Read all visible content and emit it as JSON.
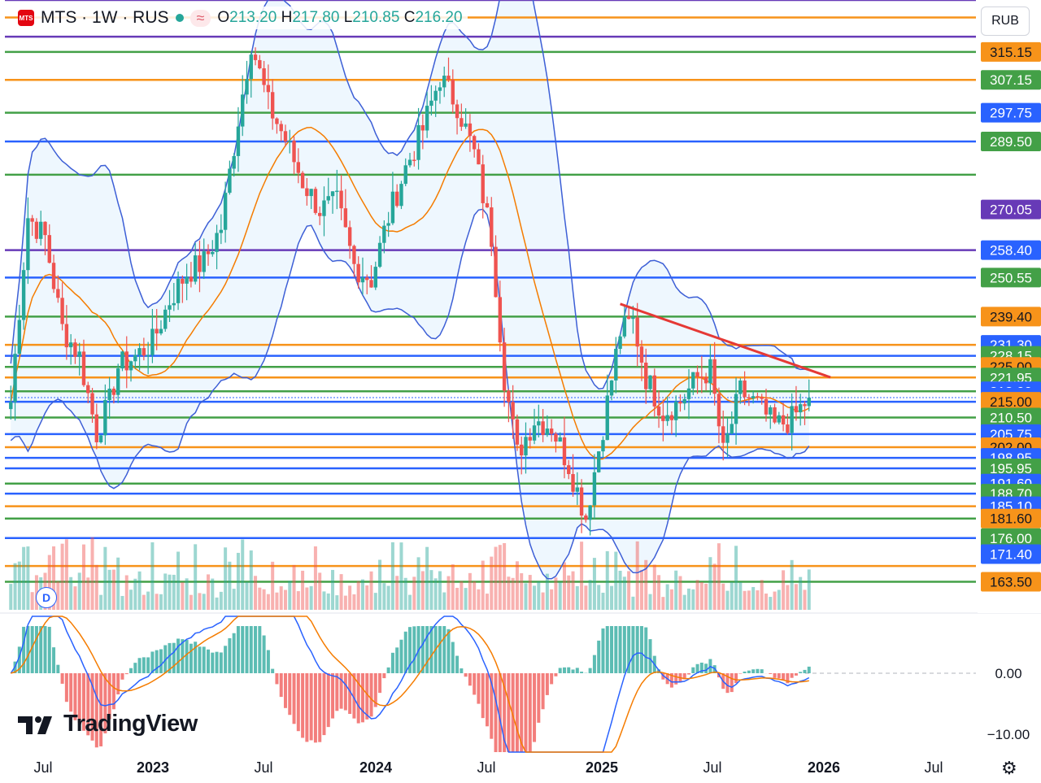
{
  "header": {
    "symbol": "MTS · 1W · RUS",
    "logo_text": "MTS",
    "approx_symbol": "≈",
    "open_label": "O",
    "open": "213.20",
    "high_label": "H",
    "high": "217.80",
    "low_label": "L",
    "low": "210.85",
    "close_label": "C",
    "close": "216.20"
  },
  "currency": "RUB",
  "branding": "TradingView",
  "dividend_badge": "D",
  "colors": {
    "green": "#43a047",
    "orange": "#f7931a",
    "blue": "#2962ff",
    "purple": "#673ab7",
    "bull": "#26a69a",
    "bear": "#ef5350",
    "bb": "#3d5fd6",
    "ma": "#f57c00",
    "trend": "#e53935"
  },
  "chart_data": {
    "type": "candlestick",
    "title": "MTS · 1W · RUS",
    "ylim": [
      155,
      330
    ],
    "last_price": 216.2,
    "price_axis_labels": [
      {
        "value": 315.15,
        "color": "#f7931a"
      },
      {
        "value": 307.15,
        "color": "#43a047"
      },
      {
        "value": 297.75,
        "color": "#2962ff"
      },
      {
        "value": 289.5,
        "color": "#43a047"
      },
      {
        "value": 270.05,
        "color": "#673ab7"
      },
      {
        "value": 258.4,
        "color": "#2962ff"
      },
      {
        "value": 250.55,
        "color": "#43a047"
      },
      {
        "value": 239.4,
        "color": "#f7931a"
      },
      {
        "value": 231.3,
        "color": "#2962ff"
      },
      {
        "value": 228.15,
        "color": "#43a047"
      },
      {
        "value": 225.0,
        "color": "#f7931a"
      },
      {
        "value": 221.95,
        "color": "#43a047"
      },
      {
        "value": 218.0,
        "color": "#2962ff"
      },
      {
        "value": 216.2,
        "color": "#2962ff"
      },
      {
        "value": 215.0,
        "color": "#f7931a"
      },
      {
        "value": 210.5,
        "color": "#43a047"
      },
      {
        "value": 205.75,
        "color": "#2962ff"
      },
      {
        "value": 202.0,
        "color": "#f7931a"
      },
      {
        "value": 198.95,
        "color": "#2962ff"
      },
      {
        "value": 195.95,
        "color": "#43a047"
      },
      {
        "value": 191.6,
        "color": "#2962ff"
      },
      {
        "value": 188.7,
        "color": "#43a047"
      },
      {
        "value": 185.1,
        "color": "#2962ff"
      },
      {
        "value": 181.6,
        "color": "#f7931a"
      },
      {
        "value": 176.0,
        "color": "#43a047"
      },
      {
        "value": 171.4,
        "color": "#2962ff"
      },
      {
        "value": 163.5,
        "color": "#f7931a"
      }
    ],
    "horizontal_levels": [
      {
        "value": 330,
        "color": "#673ab7"
      },
      {
        "value": 325,
        "color": "#f7931a"
      },
      {
        "value": 319.5,
        "color": "#673ab7"
      },
      {
        "value": 315.15,
        "color": "#43a047"
      },
      {
        "value": 307.15,
        "color": "#f7931a"
      },
      {
        "value": 297.75,
        "color": "#43a047"
      },
      {
        "value": 289.5,
        "color": "#2962ff"
      },
      {
        "value": 280,
        "color": "#43a047"
      },
      {
        "value": 258.4,
        "color": "#673ab7"
      },
      {
        "value": 250.55,
        "color": "#2962ff"
      },
      {
        "value": 239.4,
        "color": "#43a047"
      },
      {
        "value": 231.3,
        "color": "#f7931a"
      },
      {
        "value": 228.15,
        "color": "#2962ff"
      },
      {
        "value": 225,
        "color": "#43a047"
      },
      {
        "value": 221.95,
        "color": "#f7931a"
      },
      {
        "value": 218,
        "color": "#43a047"
      },
      {
        "value": 215,
        "color": "#2962ff"
      },
      {
        "value": 210.5,
        "color": "#43a047"
      },
      {
        "value": 205.75,
        "color": "#2962ff"
      },
      {
        "value": 202,
        "color": "#f7931a"
      },
      {
        "value": 198.95,
        "color": "#2962ff"
      },
      {
        "value": 195.95,
        "color": "#2962ff"
      },
      {
        "value": 191.6,
        "color": "#43a047"
      },
      {
        "value": 188.7,
        "color": "#2962ff"
      },
      {
        "value": 185.1,
        "color": "#f7931a"
      },
      {
        "value": 181.6,
        "color": "#43a047"
      },
      {
        "value": 176,
        "color": "#2962ff"
      },
      {
        "value": 168,
        "color": "#f7931a"
      },
      {
        "value": 163.5,
        "color": "#43a047"
      }
    ],
    "trendline": {
      "from": {
        "date": "2025-01-20",
        "value": 243
      },
      "to": {
        "date": "2025-12-29",
        "value": 222
      }
    },
    "series_close": [
      {
        "date": "2022-05-02",
        "value": 215
      },
      {
        "date": "2022-05-30",
        "value": 268
      },
      {
        "date": "2022-06-27",
        "value": 262
      },
      {
        "date": "2022-07-25",
        "value": 236
      },
      {
        "date": "2022-08-22",
        "value": 228
      },
      {
        "date": "2022-09-19",
        "value": 206
      },
      {
        "date": "2022-10-10",
        "value": 215
      },
      {
        "date": "2022-10-24",
        "value": 225
      },
      {
        "date": "2022-11-21",
        "value": 228
      },
      {
        "date": "2022-12-19",
        "value": 232
      },
      {
        "date": "2023-01-16",
        "value": 244
      },
      {
        "date": "2023-02-13",
        "value": 252
      },
      {
        "date": "2023-03-13",
        "value": 255
      },
      {
        "date": "2023-04-10",
        "value": 265
      },
      {
        "date": "2023-05-08",
        "value": 296
      },
      {
        "date": "2023-05-29",
        "value": 318
      },
      {
        "date": "2023-06-26",
        "value": 300
      },
      {
        "date": "2023-07-24",
        "value": 290
      },
      {
        "date": "2023-08-21",
        "value": 278
      },
      {
        "date": "2023-09-18",
        "value": 270
      },
      {
        "date": "2023-10-16",
        "value": 272
      },
      {
        "date": "2023-11-13",
        "value": 254
      },
      {
        "date": "2023-12-11",
        "value": 250
      },
      {
        "date": "2024-01-08",
        "value": 268
      },
      {
        "date": "2024-02-05",
        "value": 282
      },
      {
        "date": "2024-03-04",
        "value": 293
      },
      {
        "date": "2024-04-01",
        "value": 308
      },
      {
        "date": "2024-04-29",
        "value": 300
      },
      {
        "date": "2024-05-27",
        "value": 286
      },
      {
        "date": "2024-06-24",
        "value": 262
      },
      {
        "date": "2024-07-15",
        "value": 222
      },
      {
        "date": "2024-08-05",
        "value": 200
      },
      {
        "date": "2024-09-02",
        "value": 210
      },
      {
        "date": "2024-09-30",
        "value": 208
      },
      {
        "date": "2024-10-28",
        "value": 197
      },
      {
        "date": "2024-11-25",
        "value": 182
      },
      {
        "date": "2024-12-23",
        "value": 208
      },
      {
        "date": "2025-01-20",
        "value": 235
      },
      {
        "date": "2025-02-10",
        "value": 238
      },
      {
        "date": "2025-03-03",
        "value": 222
      },
      {
        "date": "2025-03-31",
        "value": 212
      },
      {
        "date": "2025-04-28",
        "value": 215
      },
      {
        "date": "2025-05-26",
        "value": 222
      },
      {
        "date": "2025-06-16",
        "value": 224
      },
      {
        "date": "2025-07-07",
        "value": 200
      },
      {
        "date": "2025-08-04",
        "value": 218
      },
      {
        "date": "2025-09-01",
        "value": 214
      },
      {
        "date": "2025-09-29",
        "value": 208
      },
      {
        "date": "2025-10-27",
        "value": 210
      },
      {
        "date": "2025-11-24",
        "value": 216.2
      }
    ],
    "x_axis_labels": [
      "Jul",
      "2023",
      "Jul",
      "2024",
      "Jul",
      "2025",
      "Jul",
      "2026",
      "Jul"
    ],
    "macd_axis_labels": [
      "0.00",
      "−10.00"
    ],
    "volume": true,
    "indicators": [
      "Bollinger Bands",
      "Moving Average",
      "MACD"
    ]
  }
}
